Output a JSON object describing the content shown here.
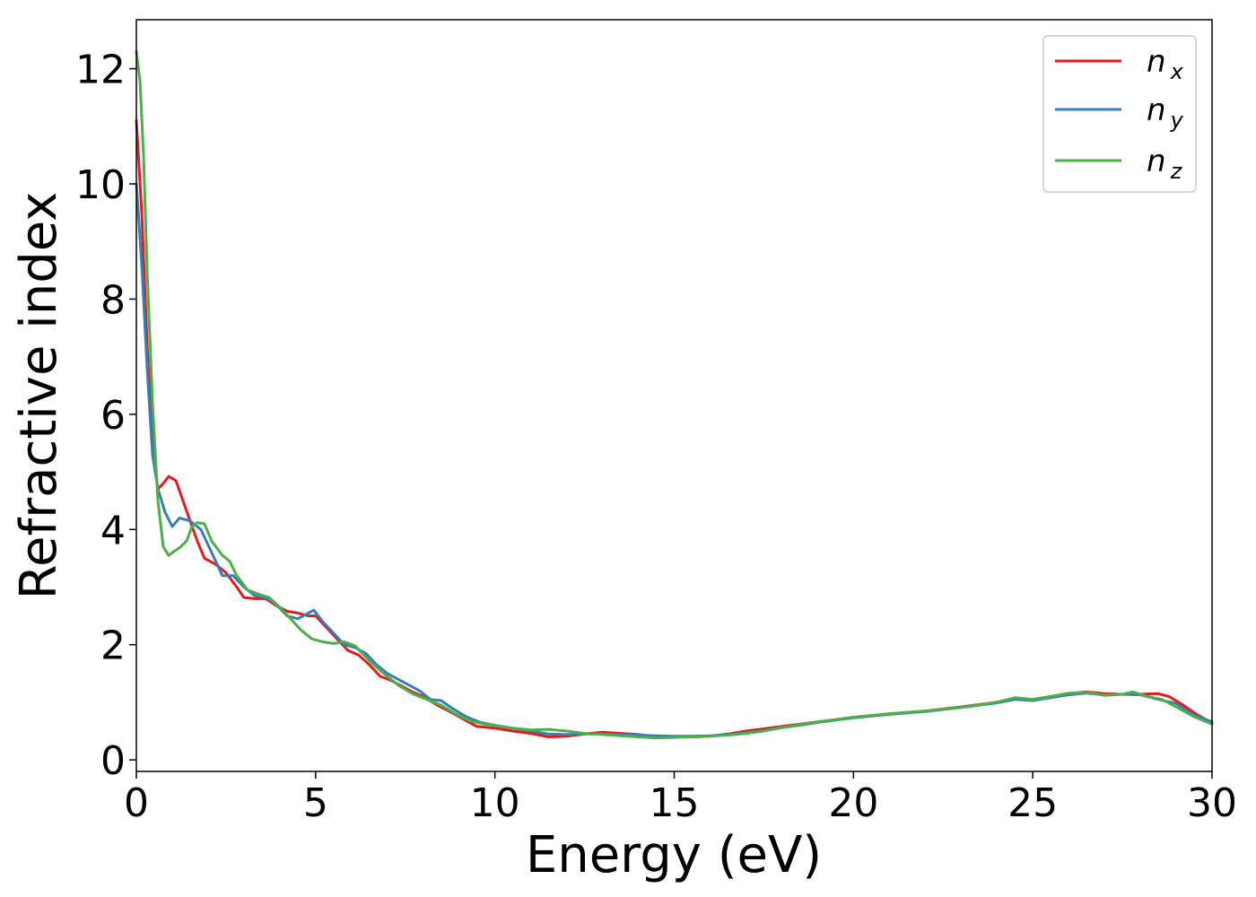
{
  "chart_data": {
    "type": "line",
    "title": "",
    "xlabel": "Energy (eV)",
    "ylabel": "Refractive index",
    "xlim": [
      0,
      30
    ],
    "ylim": [
      -0.2,
      12.85
    ],
    "xticks": [
      0,
      5,
      10,
      15,
      20,
      25,
      30
    ],
    "yticks": [
      0,
      2,
      4,
      6,
      8,
      10,
      12
    ],
    "xtick_labels": [
      "0",
      "5",
      "10",
      "15",
      "20",
      "25",
      "30"
    ],
    "ytick_labels": [
      "0",
      "2",
      "4",
      "6",
      "8",
      "10",
      "12"
    ],
    "grid": false,
    "legend_position": "top-right",
    "series": [
      {
        "name": "n_x",
        "label_base": "n",
        "label_sub": "x",
        "color": "#e41a1c",
        "points": [
          [
            0,
            11.1
          ],
          [
            0.15,
            9.5
          ],
          [
            0.3,
            7.2
          ],
          [
            0.45,
            5.5
          ],
          [
            0.6,
            4.7
          ],
          [
            0.75,
            4.8
          ],
          [
            0.9,
            4.92
          ],
          [
            1.1,
            4.85
          ],
          [
            1.3,
            4.5
          ],
          [
            1.5,
            4.15
          ],
          [
            1.7,
            3.8
          ],
          [
            1.9,
            3.5
          ],
          [
            2.2,
            3.4
          ],
          [
            2.5,
            3.25
          ],
          [
            2.8,
            3.0
          ],
          [
            3.0,
            2.82
          ],
          [
            3.3,
            2.8
          ],
          [
            3.6,
            2.8
          ],
          [
            3.9,
            2.68
          ],
          [
            4.2,
            2.58
          ],
          [
            4.5,
            2.55
          ],
          [
            4.8,
            2.5
          ],
          [
            5.0,
            2.5
          ],
          [
            5.3,
            2.3
          ],
          [
            5.6,
            2.1
          ],
          [
            5.9,
            1.9
          ],
          [
            6.2,
            1.82
          ],
          [
            6.5,
            1.65
          ],
          [
            6.8,
            1.45
          ],
          [
            7.1,
            1.38
          ],
          [
            7.4,
            1.28
          ],
          [
            7.7,
            1.18
          ],
          [
            8.0,
            1.1
          ],
          [
            8.4,
            0.95
          ],
          [
            8.8,
            0.82
          ],
          [
            9.2,
            0.68
          ],
          [
            9.5,
            0.58
          ],
          [
            10.0,
            0.55
          ],
          [
            10.5,
            0.5
          ],
          [
            11.0,
            0.46
          ],
          [
            11.5,
            0.4
          ],
          [
            12.0,
            0.41
          ],
          [
            12.5,
            0.45
          ],
          [
            13.0,
            0.48
          ],
          [
            13.5,
            0.46
          ],
          [
            14.0,
            0.44
          ],
          [
            14.5,
            0.4
          ],
          [
            15.0,
            0.4
          ],
          [
            15.5,
            0.4
          ],
          [
            16.0,
            0.41
          ],
          [
            16.5,
            0.45
          ],
          [
            17.0,
            0.5
          ],
          [
            17.5,
            0.54
          ],
          [
            18.0,
            0.58
          ],
          [
            18.5,
            0.62
          ],
          [
            19.0,
            0.66
          ],
          [
            19.5,
            0.7
          ],
          [
            20.0,
            0.74
          ],
          [
            21.0,
            0.8
          ],
          [
            22.0,
            0.85
          ],
          [
            23.0,
            0.92
          ],
          [
            24.0,
            1.0
          ],
          [
            24.5,
            1.07
          ],
          [
            25.0,
            1.05
          ],
          [
            25.5,
            1.1
          ],
          [
            26.0,
            1.15
          ],
          [
            26.5,
            1.18
          ],
          [
            27.0,
            1.15
          ],
          [
            27.5,
            1.14
          ],
          [
            28.0,
            1.14
          ],
          [
            28.5,
            1.15
          ],
          [
            28.8,
            1.1
          ],
          [
            29.2,
            0.95
          ],
          [
            29.6,
            0.78
          ],
          [
            30.0,
            0.64
          ]
        ]
      },
      {
        "name": "n_y",
        "label_base": "n",
        "label_sub": "y",
        "color": "#377eb8",
        "points": [
          [
            0,
            10.0
          ],
          [
            0.15,
            8.6
          ],
          [
            0.3,
            6.8
          ],
          [
            0.45,
            5.3
          ],
          [
            0.6,
            4.7
          ],
          [
            0.8,
            4.3
          ],
          [
            1.0,
            4.05
          ],
          [
            1.2,
            4.2
          ],
          [
            1.5,
            4.15
          ],
          [
            1.8,
            4.0
          ],
          [
            2.1,
            3.6
          ],
          [
            2.4,
            3.2
          ],
          [
            2.7,
            3.2
          ],
          [
            3.0,
            3.0
          ],
          [
            3.3,
            2.85
          ],
          [
            3.6,
            2.82
          ],
          [
            3.9,
            2.7
          ],
          [
            4.2,
            2.5
          ],
          [
            4.5,
            2.45
          ],
          [
            4.8,
            2.55
          ],
          [
            4.95,
            2.6
          ],
          [
            5.2,
            2.4
          ],
          [
            5.5,
            2.2
          ],
          [
            5.8,
            2.0
          ],
          [
            6.1,
            1.95
          ],
          [
            6.4,
            1.85
          ],
          [
            6.7,
            1.65
          ],
          [
            7.0,
            1.5
          ],
          [
            7.3,
            1.4
          ],
          [
            7.6,
            1.3
          ],
          [
            7.9,
            1.2
          ],
          [
            8.2,
            1.05
          ],
          [
            8.5,
            1.03
          ],
          [
            8.8,
            0.9
          ],
          [
            9.2,
            0.75
          ],
          [
            9.6,
            0.65
          ],
          [
            10.0,
            0.6
          ],
          [
            10.5,
            0.55
          ],
          [
            11.0,
            0.5
          ],
          [
            11.5,
            0.45
          ],
          [
            12.0,
            0.44
          ],
          [
            12.5,
            0.45
          ],
          [
            13.0,
            0.45
          ],
          [
            13.5,
            0.44
          ],
          [
            14.0,
            0.43
          ],
          [
            14.5,
            0.42
          ],
          [
            15.0,
            0.41
          ],
          [
            15.5,
            0.41
          ],
          [
            16.0,
            0.42
          ],
          [
            16.5,
            0.44
          ],
          [
            17.0,
            0.47
          ],
          [
            17.5,
            0.51
          ],
          [
            18.0,
            0.56
          ],
          [
            18.5,
            0.6
          ],
          [
            19.0,
            0.65
          ],
          [
            19.5,
            0.69
          ],
          [
            20.0,
            0.73
          ],
          [
            21.0,
            0.79
          ],
          [
            22.0,
            0.84
          ],
          [
            23.0,
            0.91
          ],
          [
            24.0,
            0.99
          ],
          [
            24.5,
            1.05
          ],
          [
            25.0,
            1.03
          ],
          [
            25.5,
            1.08
          ],
          [
            26.0,
            1.13
          ],
          [
            26.5,
            1.16
          ],
          [
            27.0,
            1.13
          ],
          [
            27.5,
            1.14
          ],
          [
            28.0,
            1.13
          ],
          [
            28.5,
            1.05
          ],
          [
            29.0,
            0.98
          ],
          [
            29.5,
            0.78
          ],
          [
            30.0,
            0.66
          ]
        ]
      },
      {
        "name": "n_z",
        "label_base": "n",
        "label_sub": "z",
        "color": "#4daf4a",
        "points": [
          [
            0,
            12.3
          ],
          [
            0.1,
            11.8
          ],
          [
            0.2,
            10.5
          ],
          [
            0.3,
            8.5
          ],
          [
            0.45,
            6.2
          ],
          [
            0.6,
            4.5
          ],
          [
            0.75,
            3.7
          ],
          [
            0.9,
            3.55
          ],
          [
            1.05,
            3.62
          ],
          [
            1.2,
            3.68
          ],
          [
            1.4,
            3.8
          ],
          [
            1.55,
            4.05
          ],
          [
            1.7,
            4.12
          ],
          [
            1.9,
            4.1
          ],
          [
            2.1,
            3.8
          ],
          [
            2.4,
            3.55
          ],
          [
            2.6,
            3.45
          ],
          [
            2.8,
            3.2
          ],
          [
            3.1,
            2.95
          ],
          [
            3.4,
            2.88
          ],
          [
            3.7,
            2.82
          ],
          [
            4.0,
            2.65
          ],
          [
            4.3,
            2.45
          ],
          [
            4.6,
            2.25
          ],
          [
            4.9,
            2.1
          ],
          [
            5.2,
            2.05
          ],
          [
            5.5,
            2.02
          ],
          [
            5.8,
            2.05
          ],
          [
            6.1,
            1.98
          ],
          [
            6.5,
            1.72
          ],
          [
            6.9,
            1.5
          ],
          [
            7.3,
            1.3
          ],
          [
            7.7,
            1.15
          ],
          [
            8.1,
            1.05
          ],
          [
            8.5,
            0.95
          ],
          [
            8.9,
            0.8
          ],
          [
            9.3,
            0.68
          ],
          [
            9.7,
            0.62
          ],
          [
            10.0,
            0.6
          ],
          [
            10.5,
            0.55
          ],
          [
            11.0,
            0.52
          ],
          [
            11.5,
            0.53
          ],
          [
            12.0,
            0.5
          ],
          [
            12.5,
            0.46
          ],
          [
            13.0,
            0.44
          ],
          [
            13.5,
            0.42
          ],
          [
            14.0,
            0.4
          ],
          [
            14.5,
            0.38
          ],
          [
            15.0,
            0.39
          ],
          [
            15.5,
            0.4
          ],
          [
            16.0,
            0.41
          ],
          [
            16.5,
            0.43
          ],
          [
            17.0,
            0.46
          ],
          [
            17.5,
            0.5
          ],
          [
            18.0,
            0.56
          ],
          [
            18.5,
            0.61
          ],
          [
            19.0,
            0.66
          ],
          [
            19.5,
            0.7
          ],
          [
            20.0,
            0.74
          ],
          [
            21.0,
            0.8
          ],
          [
            22.0,
            0.85
          ],
          [
            23.0,
            0.91
          ],
          [
            24.0,
            1.0
          ],
          [
            24.5,
            1.08
          ],
          [
            25.0,
            1.05
          ],
          [
            25.5,
            1.1
          ],
          [
            26.0,
            1.16
          ],
          [
            26.5,
            1.17
          ],
          [
            27.0,
            1.12
          ],
          [
            27.5,
            1.14
          ],
          [
            27.8,
            1.18
          ],
          [
            28.2,
            1.1
          ],
          [
            28.6,
            1.05
          ],
          [
            29.0,
            0.92
          ],
          [
            29.5,
            0.75
          ],
          [
            30.0,
            0.62
          ]
        ]
      }
    ]
  }
}
